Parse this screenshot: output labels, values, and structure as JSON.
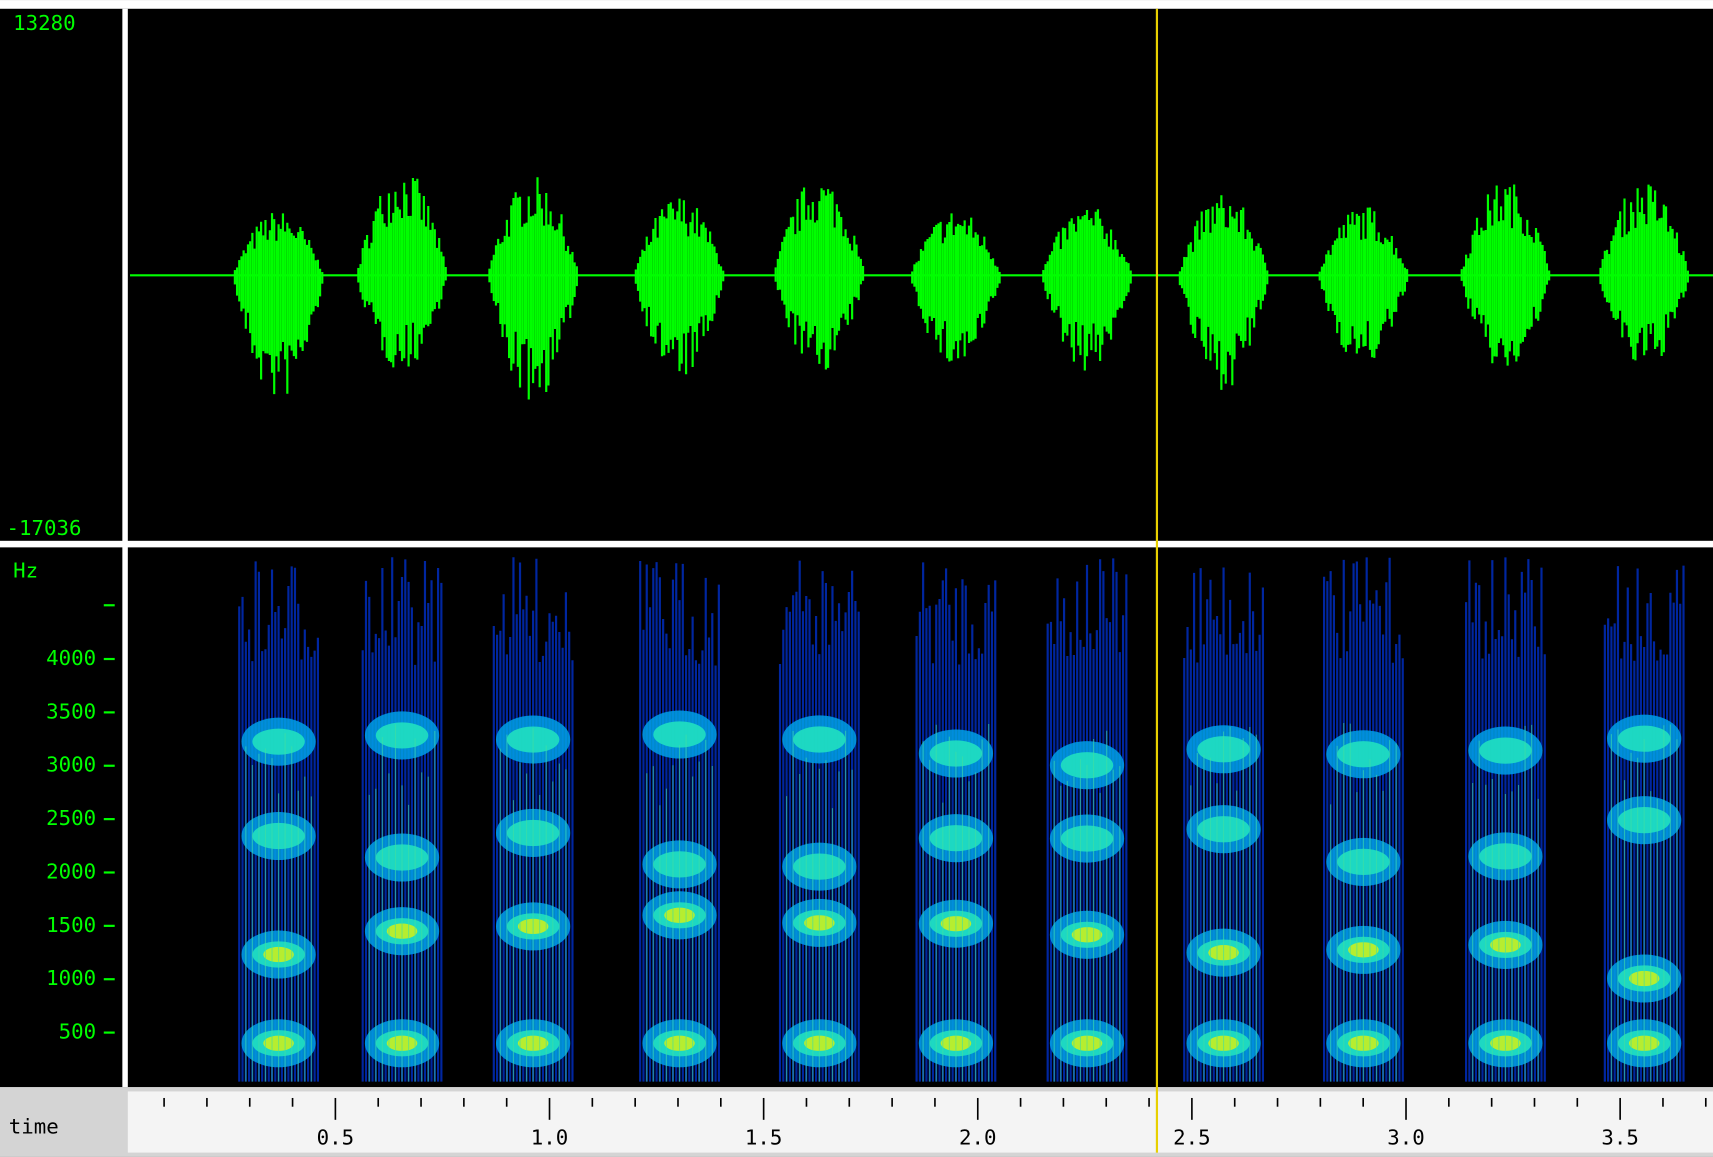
{
  "waveform": {
    "max_label": "13280",
    "min_label": "-17036"
  },
  "spectrogram": {
    "unit": "Hz",
    "freq_ticks": [
      500,
      1000,
      1500,
      2000,
      2500,
      3000,
      3500,
      4000
    ]
  },
  "time_axis": {
    "label": "time",
    "ticks": [
      "0.5",
      "1.0",
      "1.5",
      "2.0",
      "2.5",
      "3.0",
      "3.5"
    ]
  }
}
